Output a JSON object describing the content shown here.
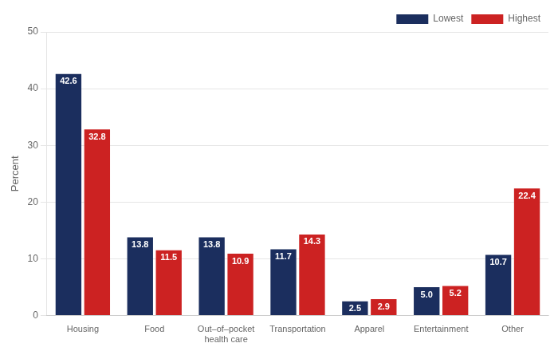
{
  "chart_data": {
    "type": "bar",
    "ylabel": "Percent",
    "categories": [
      "Housing",
      "Food",
      "Out–of–pocket\nhealth care",
      "Transportation",
      "Apparel",
      "Entertainment",
      "Other"
    ],
    "series": [
      {
        "name": "Lowest",
        "color": "#1b2e5e",
        "values": [
          42.6,
          13.8,
          13.8,
          11.7,
          2.5,
          5.0,
          10.7
        ],
        "value_labels": [
          "42.6",
          "13.8",
          "13.8",
          "11.7",
          "2.5",
          "5.0",
          "10.7"
        ]
      },
      {
        "name": "Highest",
        "color": "#cc2222",
        "values": [
          32.8,
          11.5,
          10.9,
          14.3,
          2.9,
          5.2,
          22.4
        ]
      }
    ],
    "ylim": [
      0,
      50
    ],
    "yticks": [
      0,
      10,
      20,
      30,
      40,
      50
    ],
    "grid": true,
    "legend": "upper right",
    "data_labels": true
  }
}
